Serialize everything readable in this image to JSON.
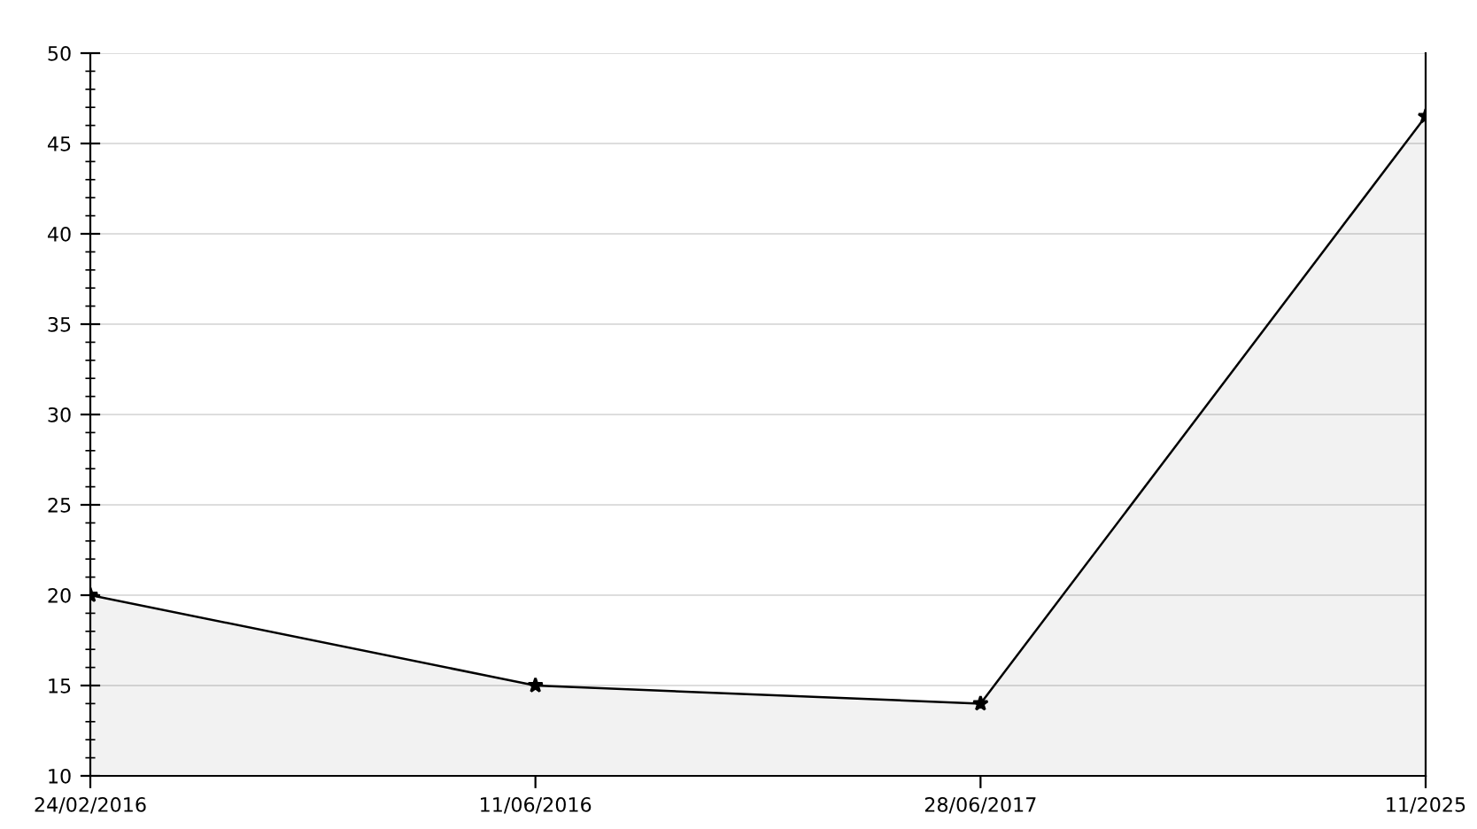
{
  "chart_data": {
    "type": "area",
    "categories": [
      "24/02/2016",
      "11/06/2016",
      "28/06/2017",
      "11/2025"
    ],
    "series": [
      {
        "color": "#000000",
        "values": [
          20,
          15,
          14,
          46.5
        ]
      }
    ],
    "ylim": [
      10,
      50
    ],
    "yticks": [
      10,
      {
        "value": 11,
        "label": null
      },
      {
        "value": 12,
        "label": null
      },
      {
        "value": 13,
        "label": null
      },
      {
        "value": 14,
        "label": null
      },
      15,
      {
        "value": 16,
        "label": null
      },
      {
        "value": 17,
        "label": null
      },
      {
        "value": 18,
        "label": null
      },
      {
        "value": 19,
        "label": null
      },
      20,
      {
        "value": 21,
        "label": null
      },
      {
        "value": 22,
        "label": null
      },
      {
        "value": 23,
        "label": null
      },
      {
        "value": 24,
        "label": null
      },
      25,
      {
        "value": 26,
        "label": null
      },
      {
        "value": 27,
        "label": null
      },
      {
        "value": 28,
        "label": null
      },
      {
        "value": 29,
        "label": null
      },
      30,
      {
        "value": 31,
        "label": null
      },
      {
        "value": 32,
        "label": null
      },
      {
        "value": 33,
        "label": null
      },
      {
        "value": 34,
        "label": null
      },
      35,
      {
        "value": 36,
        "label": null
      },
      {
        "value": 37,
        "label": null
      },
      {
        "value": 38,
        "label": null
      },
      {
        "value": 39,
        "label": null
      },
      40,
      {
        "value": 41,
        "label": null
      },
      {
        "value": 42,
        "label": null
      },
      {
        "value": 43,
        "label": null
      },
      {
        "value": 44,
        "label": null
      },
      45,
      {
        "value": 46,
        "label": null
      },
      {
        "value": 47,
        "label": null
      },
      {
        "value": 48,
        "label": null
      },
      {
        "value": 49,
        "label": null
      },
      50
    ],
    "grid": "y",
    "marker": "star",
    "line_style": "solid",
    "legend": false
  }
}
